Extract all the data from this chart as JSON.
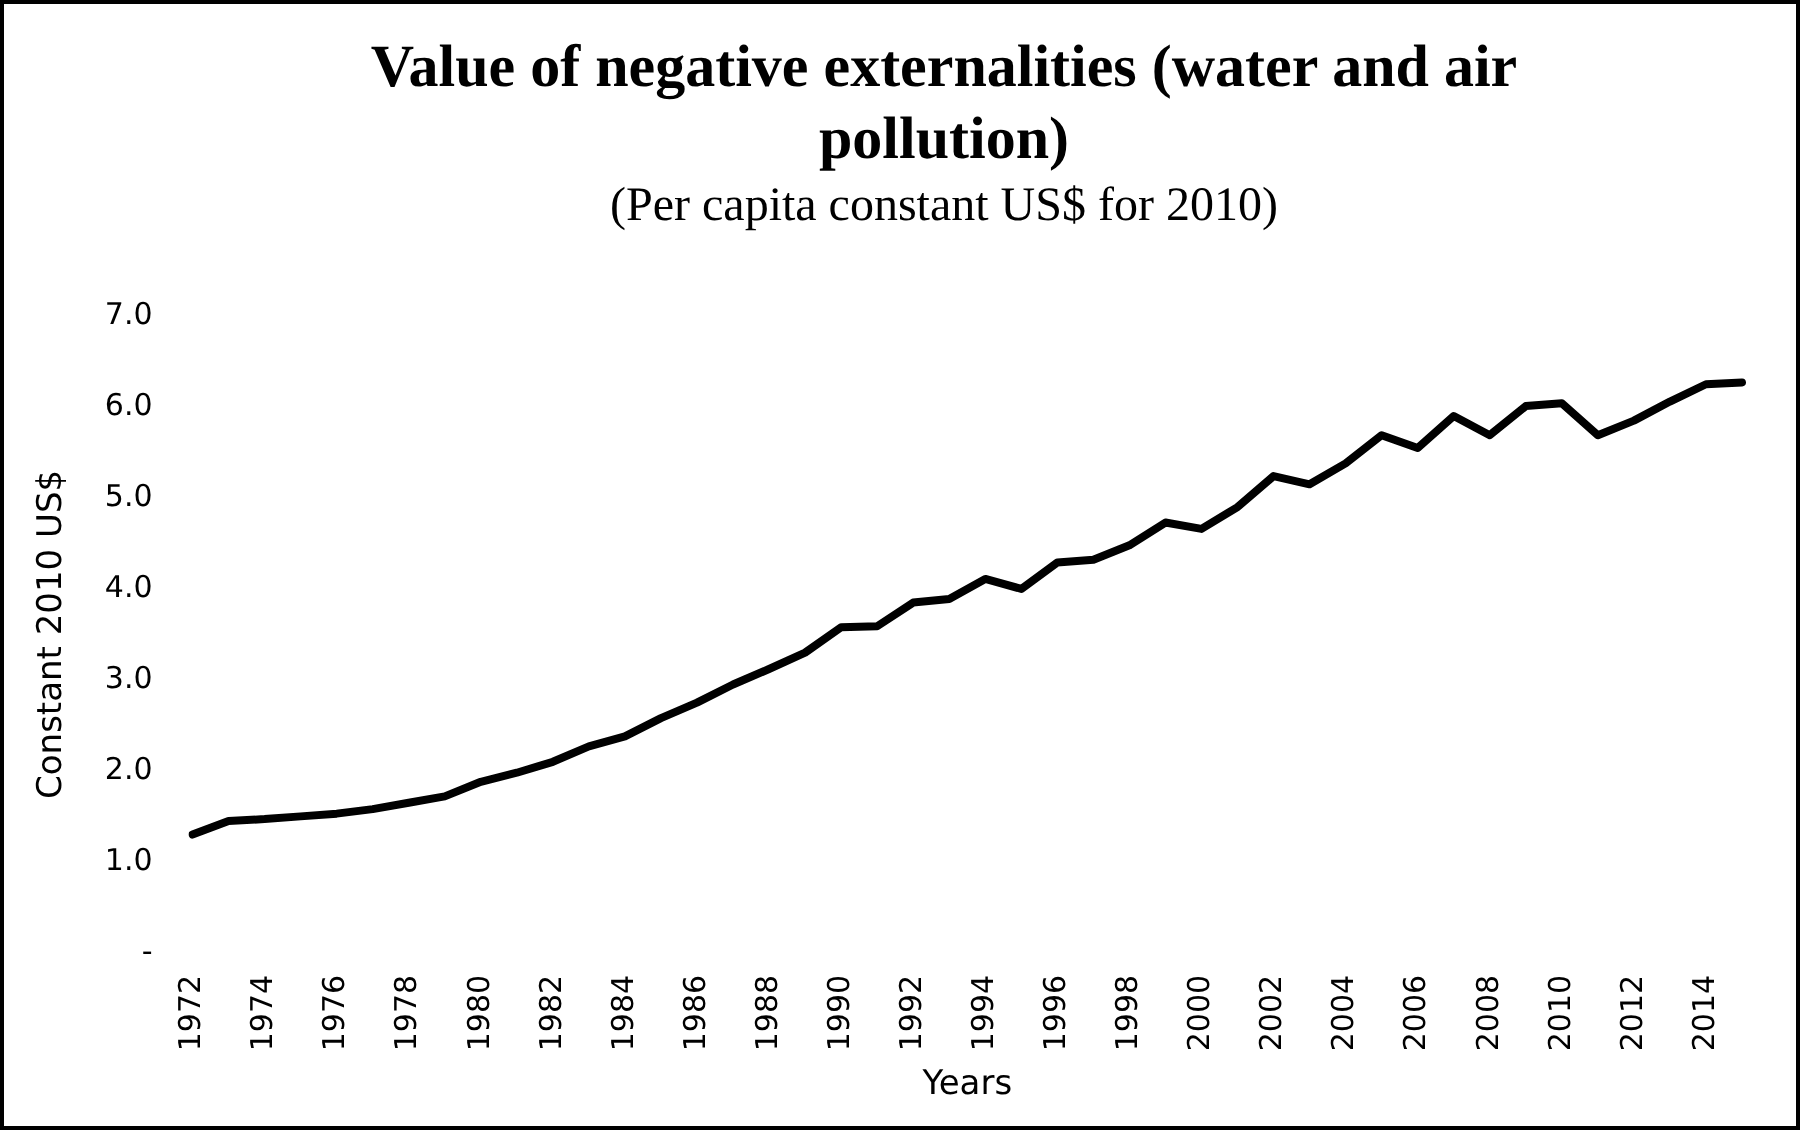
{
  "chart_data": {
    "type": "line",
    "title": "Value of negative externalities (water and air pollution)",
    "subtitle": "(Per capita constant US$ for 2010)",
    "xlabel": "Years",
    "ylabel": "Constant 2010 US$",
    "categories": [
      "1972",
      null,
      "1974",
      null,
      "1976",
      null,
      "1978",
      null,
      "1980",
      null,
      "1982",
      null,
      "1984",
      null,
      "1986",
      null,
      "1988",
      null,
      "1990",
      null,
      "1992",
      null,
      "1994",
      null,
      "1996",
      null,
      "1998",
      null,
      "2000",
      null,
      "2002",
      null,
      "2004",
      null,
      "2006",
      null,
      "2008",
      null,
      "2010",
      null,
      "2012",
      null,
      "2014",
      null
    ],
    "series": [
      {
        "color": "#000000",
        "values": [
          1.3,
          1.45,
          1.47,
          1.5,
          1.53,
          1.58,
          1.65,
          1.72,
          1.88,
          1.98,
          2.1,
          2.27,
          2.38,
          2.58,
          2.75,
          2.95,
          3.12,
          3.3,
          3.58,
          3.59,
          3.85,
          3.89,
          4.11,
          4.0,
          4.29,
          4.32,
          4.48,
          4.73,
          4.66,
          4.9,
          5.24,
          5.15,
          5.38,
          5.69,
          5.55,
          5.9,
          5.69,
          6.01,
          6.04,
          5.69,
          5.85,
          6.06,
          6.25,
          6.27
        ]
      }
    ],
    "ylim": [
      0,
      7
    ],
    "yticks": [
      {
        "value": 0,
        "label": "-"
      },
      {
        "value": 1,
        "label": "1.0"
      },
      {
        "value": 2,
        "label": "2.0"
      },
      {
        "value": 3,
        "label": "3.0"
      },
      {
        "value": 4,
        "label": "4.0"
      },
      {
        "value": 5,
        "label": "5.0"
      },
      {
        "value": 6,
        "label": "6.0"
      },
      {
        "value": 7,
        "label": "7.0"
      }
    ],
    "grid": false,
    "legend": false,
    "marker": "none",
    "line_style": "solid"
  }
}
